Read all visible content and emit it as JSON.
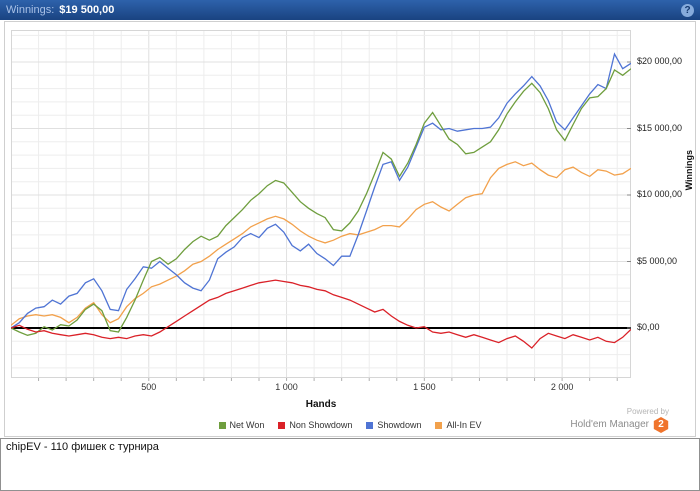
{
  "header": {
    "winnings_label": "Winnings:",
    "winnings_value": "$19 500,00",
    "help_icon": "?"
  },
  "footer": {
    "powered_by": "Powered by",
    "brand": "Hold'em Manager",
    "badge": "2"
  },
  "notes": {
    "text": "chipEV - 110 фишек с турнира"
  },
  "colors": {
    "header_bg": "#1d4e9b",
    "net_won": "#6f9e3e",
    "non_showdown": "#da2128",
    "showdown": "#4f74d4",
    "all_in_ev": "#f2a14c",
    "zero_line": "#000000",
    "badge_orange": "#f0742c"
  },
  "chart_data": {
    "type": "line",
    "title": "",
    "xlabel": "Hands",
    "ylabel": "Winnings",
    "xlim": [
      0,
      2250
    ],
    "ylim": [
      -3759,
      22406
    ],
    "x_start": 0,
    "x_step": 30,
    "grid": {
      "on": true,
      "x_minor": 100,
      "x_major": 500,
      "y_minor": 1000,
      "y_major": 5000,
      "y_min": -3000,
      "y_max": 22000
    },
    "legend_position": "bottom",
    "zero_line": 0,
    "x_ticks": [
      {
        "value": 500,
        "label": "500"
      },
      {
        "value": 1000,
        "label": "1 000"
      },
      {
        "value": 1500,
        "label": "1 500"
      },
      {
        "value": 2000,
        "label": "2 000"
      }
    ],
    "y_ticks": [
      {
        "value": 0,
        "label": "$0,00"
      },
      {
        "value": 5000,
        "label": "$5 000,00"
      },
      {
        "value": 10000,
        "label": "$10 000,00"
      },
      {
        "value": 15000,
        "label": "$15 000,00"
      },
      {
        "value": 20000,
        "label": "$20 000,00"
      }
    ],
    "series": [
      {
        "name": "Net Won",
        "color": "#6f9e3e",
        "values": [
          0,
          -300,
          -550,
          -400,
          100,
          -150,
          250,
          150,
          600,
          1400,
          1800,
          1300,
          -200,
          -300,
          800,
          2100,
          3600,
          5000,
          5300,
          4800,
          5200,
          5900,
          6500,
          6900,
          6600,
          6900,
          7700,
          8300,
          8900,
          9600,
          10100,
          10700,
          11100,
          10900,
          10200,
          9500,
          9000,
          8600,
          8300,
          7400,
          7300,
          7900,
          8800,
          10100,
          11600,
          13200,
          12700,
          11400,
          12400,
          13800,
          15400,
          16200,
          15200,
          14200,
          13800,
          13100,
          13200,
          13600,
          14000,
          14900,
          16100,
          17000,
          17800,
          18400,
          17700,
          16500,
          14900,
          14100,
          15300,
          16500,
          17300,
          17400,
          18000,
          19400,
          19000,
          19500
        ]
      },
      {
        "name": "Non Showdown",
        "color": "#da2128",
        "values": [
          0,
          200,
          -100,
          -300,
          -200,
          -400,
          -500,
          -600,
          -500,
          -400,
          -500,
          -700,
          -800,
          -700,
          -800,
          -600,
          -500,
          -600,
          -300,
          100,
          500,
          900,
          1300,
          1700,
          2100,
          2300,
          2600,
          2800,
          3000,
          3200,
          3400,
          3500,
          3600,
          3500,
          3400,
          3200,
          3100,
          2900,
          2800,
          2500,
          2300,
          2100,
          1800,
          1500,
          1200,
          1400,
          900,
          500,
          200,
          0,
          100,
          -300,
          -400,
          -300,
          -500,
          -700,
          -500,
          -700,
          -900,
          -1100,
          -800,
          -600,
          -1000,
          -1500,
          -800,
          -400,
          -600,
          -800,
          -500,
          -700,
          -900,
          -700,
          -1000,
          -1100,
          -700,
          -100
        ]
      },
      {
        "name": "Showdown",
        "color": "#4f74d4",
        "values": [
          0,
          400,
          1100,
          1500,
          1600,
          2100,
          1800,
          2400,
          2600,
          3400,
          3700,
          2800,
          1400,
          1300,
          2900,
          3700,
          4600,
          4500,
          5000,
          4500,
          4000,
          3400,
          3000,
          2800,
          3600,
          5200,
          5700,
          6100,
          6800,
          7100,
          6800,
          7500,
          7800,
          7200,
          6200,
          5800,
          6300,
          5600,
          5200,
          4700,
          5400,
          5400,
          7000,
          8800,
          10600,
          12300,
          12500,
          11100,
          12100,
          13600,
          15100,
          15400,
          14900,
          15000,
          14800,
          14900,
          15000,
          15000,
          15100,
          15800,
          16900,
          17600,
          18200,
          18900,
          18200,
          17100,
          15500,
          14900,
          15800,
          16700,
          17600,
          18300,
          18000,
          20600,
          19500,
          19900
        ]
      },
      {
        "name": "All-In EV",
        "color": "#f2a14c",
        "values": [
          200,
          700,
          900,
          1000,
          900,
          1000,
          800,
          400,
          800,
          1500,
          1900,
          1000,
          400,
          700,
          1600,
          2200,
          2600,
          3100,
          3300,
          3600,
          3900,
          4300,
          4800,
          5000,
          5400,
          5900,
          6300,
          6700,
          7100,
          7600,
          7900,
          8200,
          8400,
          8200,
          7800,
          7300,
          6900,
          6600,
          6400,
          6600,
          6900,
          7100,
          7000,
          7200,
          7400,
          7700,
          7700,
          7600,
          8200,
          8900,
          9300,
          9500,
          9100,
          8800,
          9300,
          9800,
          10000,
          10100,
          11300,
          12000,
          12300,
          12500,
          12200,
          12400,
          11900,
          11500,
          11300,
          11900,
          12100,
          11700,
          11400,
          11900,
          11800,
          11500,
          11600,
          12000
        ]
      }
    ]
  }
}
